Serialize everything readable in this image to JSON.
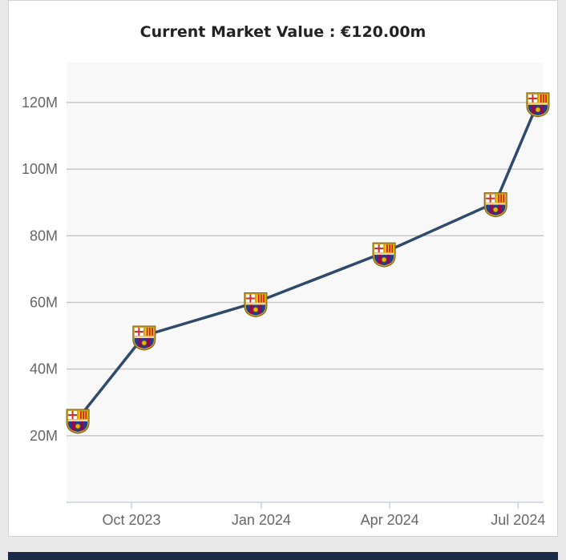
{
  "colors": {
    "plot_background": "#f8f8f8",
    "grid": "#c8c8c8",
    "line": "#2f4a6b",
    "footer": "#1b2a49"
  },
  "marker_icon": "fc-barcelona-crest-icon",
  "chart_data": {
    "type": "line",
    "title": "Current Market Value : €120.00m",
    "xlabel": "",
    "ylabel": "",
    "x_tick_labels": [
      "Oct 2023",
      "Jan 2024",
      "Apr 2024",
      "Jul 2024"
    ],
    "x_tick_dates": [
      "2023-10-01",
      "2024-01-01",
      "2024-04-01",
      "2024-07-01"
    ],
    "xlim": [
      "2023-08-16",
      "2024-07-19"
    ],
    "y_tick_labels": [
      "20M",
      "40M",
      "60M",
      "80M",
      "100M",
      "120M"
    ],
    "y_tick_values": [
      20,
      40,
      60,
      80,
      100,
      120
    ],
    "ylim": [
      0,
      132
    ],
    "grid": true,
    "series": [
      {
        "x": [
          "2023-08-24",
          "2023-10-10",
          "2023-12-28",
          "2024-03-28",
          "2024-06-15",
          "2024-07-15"
        ],
        "values": [
          25,
          50,
          60,
          75,
          90,
          120
        ]
      }
    ]
  }
}
